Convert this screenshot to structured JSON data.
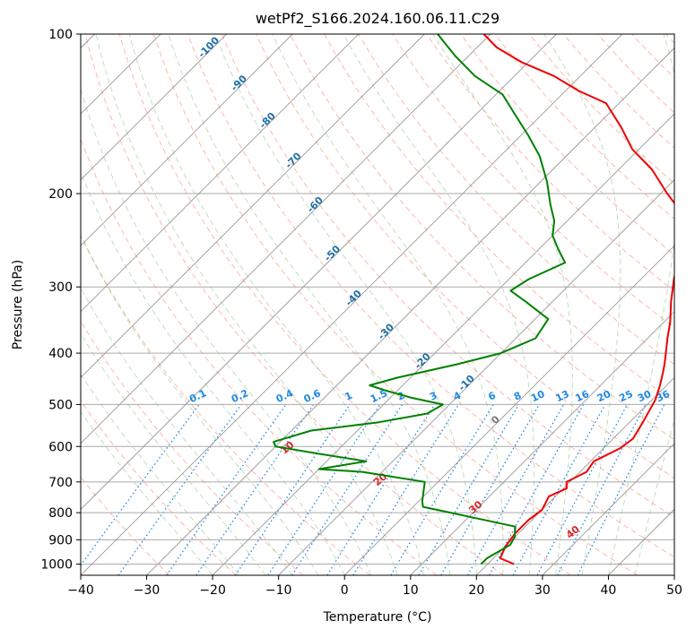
{
  "chart_data": {
    "type": "line",
    "subtype": "skew-T log-P diagram",
    "title": "wetPf2_S166.2024.160.06.11.C29",
    "xlabel": "Temperature (°C)",
    "ylabel": "Pressure (hPa)",
    "xlim": [
      -40,
      50
    ],
    "ylim_hpa": [
      1050,
      100
    ],
    "y_scale": "log",
    "grid": true,
    "x_ticks": [
      -40,
      -30,
      -20,
      -10,
      0,
      10,
      20,
      30,
      40,
      50
    ],
    "y_ticks": [
      100,
      200,
      300,
      400,
      500,
      600,
      700,
      800,
      900,
      1000
    ],
    "colors": {
      "temperature": "#ee0000",
      "dewpoint": "#008000",
      "isotherm": "#999999",
      "dry_adiabat": "#fa8060",
      "moist_adiabat": "#80c080",
      "mixing_ratio": "#1e88e5",
      "axis": "#000000",
      "isobar_grid": "#aaaaaa",
      "isotherm_label": "#1f6fa6",
      "dry_adiabat_label": "#d62728"
    },
    "series": [
      {
        "name": "Temperature",
        "color": "#ee0000",
        "points": [
          [
            24.0,
            1000
          ],
          [
            21.0,
            975
          ],
          [
            20.0,
            925
          ],
          [
            19.5,
            875
          ],
          [
            19.5,
            825
          ],
          [
            20.0,
            790
          ],
          [
            19.0,
            745
          ],
          [
            20.5,
            720
          ],
          [
            19.5,
            700
          ],
          [
            21.0,
            670
          ],
          [
            20.5,
            640
          ],
          [
            22.5,
            605
          ],
          [
            23.0,
            580
          ],
          [
            22.0,
            540
          ],
          [
            20.5,
            490
          ],
          [
            19.0,
            460
          ],
          [
            17.5,
            435
          ],
          [
            16.5,
            420
          ],
          [
            15.0,
            400
          ],
          [
            13.0,
            375
          ],
          [
            11.0,
            350
          ],
          [
            8.0,
            320
          ],
          [
            5.0,
            290
          ],
          [
            2.0,
            260
          ],
          [
            -1.0,
            240
          ],
          [
            -3.0,
            225
          ],
          [
            -6.0,
            210
          ],
          [
            -9.0,
            200
          ],
          [
            -15.0,
            180
          ],
          [
            -21.0,
            165
          ],
          [
            -26.0,
            150
          ],
          [
            -32.0,
            135
          ],
          [
            -38.0,
            128
          ],
          [
            -44.0,
            120
          ],
          [
            -51.0,
            113
          ],
          [
            -57.0,
            106
          ],
          [
            -61.0,
            100
          ]
        ]
      },
      {
        "name": "Dewpoint",
        "color": "#008000",
        "points": [
          [
            19.0,
            1000
          ],
          [
            19.0,
            975
          ],
          [
            20.5,
            920
          ],
          [
            20.0,
            890
          ],
          [
            18.5,
            850
          ],
          [
            9.0,
            810
          ],
          [
            1.5,
            780
          ],
          [
            0.5,
            760
          ],
          [
            -2.0,
            700
          ],
          [
            -13.0,
            670
          ],
          [
            -20.0,
            662
          ],
          [
            -14.0,
            640
          ],
          [
            -22.0,
            620
          ],
          [
            -30.0,
            600
          ],
          [
            -31.0,
            588
          ],
          [
            -27.0,
            560
          ],
          [
            -18.0,
            540
          ],
          [
            -12.0,
            520
          ],
          [
            -11.0,
            500
          ],
          [
            -17.0,
            485
          ],
          [
            -22.0,
            470
          ],
          [
            -25.0,
            460
          ],
          [
            -22.0,
            445
          ],
          [
            -15.0,
            420
          ],
          [
            -10.0,
            400
          ],
          [
            -7.0,
            375
          ],
          [
            -8.0,
            345
          ],
          [
            -14.0,
            320
          ],
          [
            -18.0,
            305
          ],
          [
            -17.0,
            290
          ],
          [
            -14.0,
            270
          ],
          [
            -17.0,
            255
          ],
          [
            -20.0,
            240
          ],
          [
            -22.0,
            225
          ],
          [
            -25.0,
            210
          ],
          [
            -29.0,
            190
          ],
          [
            -34.0,
            170
          ],
          [
            -39.0,
            155
          ],
          [
            -44.0,
            142
          ],
          [
            -49.0,
            130
          ],
          [
            -56.0,
            120
          ],
          [
            -62.0,
            110
          ],
          [
            -68.0,
            100
          ]
        ]
      }
    ],
    "isotherm_labels": [
      "-100",
      "-90",
      "-80",
      "-70",
      "-60",
      "-50",
      "-40",
      "-30",
      "-20",
      "-10",
      "0"
    ],
    "dry_adiabat_labels": [
      "10",
      "20",
      "30",
      "40"
    ],
    "mixing_ratio_labels": [
      "0.1",
      "0.2",
      "0.4",
      "0.6",
      "1",
      "1.5",
      "2",
      "3",
      "4",
      "6",
      "8",
      "10",
      "13",
      "16",
      "20",
      "25",
      "30",
      "36"
    ]
  }
}
